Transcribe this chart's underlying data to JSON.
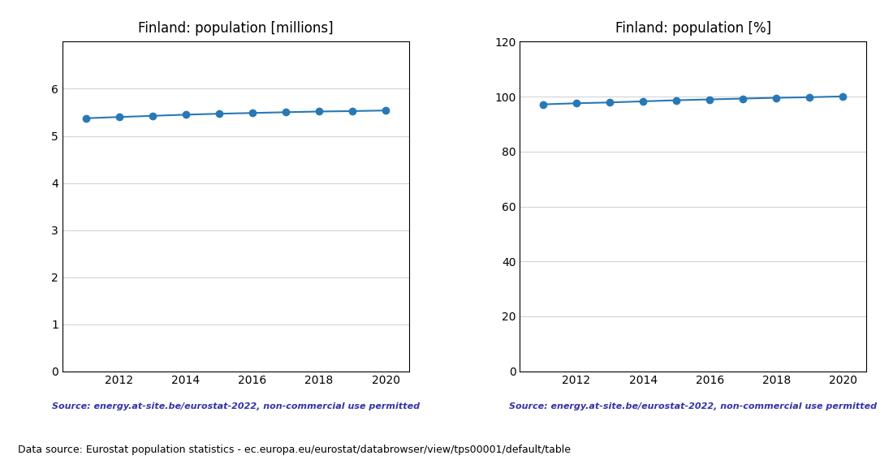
{
  "years": [
    2011,
    2012,
    2013,
    2014,
    2015,
    2016,
    2017,
    2018,
    2019,
    2020
  ],
  "pop_millions": [
    5.375,
    5.401,
    5.426,
    5.451,
    5.471,
    5.487,
    5.503,
    5.518,
    5.527,
    5.54
  ],
  "pop_pct": [
    97.2,
    97.6,
    97.9,
    98.3,
    98.7,
    99.0,
    99.3,
    99.6,
    99.8,
    100.1
  ],
  "title_millions": "Finland: population [millions]",
  "title_pct": "Finland: population [%]",
  "source_text": "Source: energy.at-site.be/eurostat-2022, non-commercial use permitted",
  "bottom_text": "Data source: Eurostat population statistics - ec.europa.eu/eurostat/databrowser/view/tps00001/default/table",
  "line_color": "#2878b5",
  "source_color": "#3333aa",
  "ylim_millions": [
    0,
    7
  ],
  "ylim_pct": [
    0,
    120
  ],
  "yticks_millions": [
    0,
    1,
    2,
    3,
    4,
    5,
    6
  ],
  "yticks_pct": [
    0,
    20,
    40,
    60,
    80,
    100,
    120
  ]
}
